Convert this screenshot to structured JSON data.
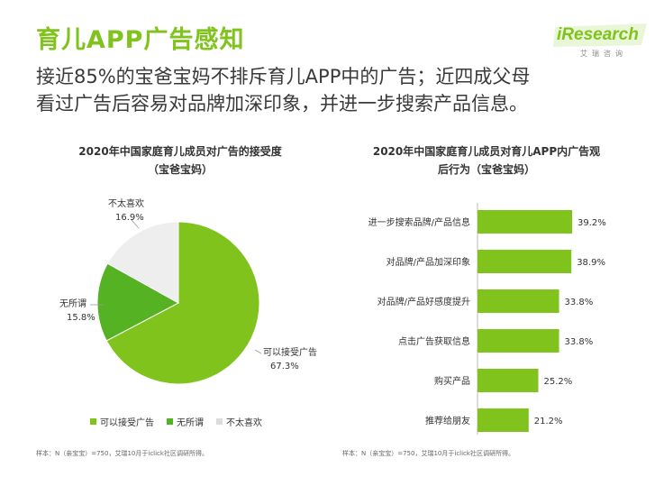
{
  "header": {
    "title": "育儿APP广告感知",
    "subtitle_line1": "接近85%的宝爸宝妈不排斥育儿APP中的广告；近四成父母",
    "subtitle_line2": "看过广告后容易对品牌加深印象，并进一步搜索产品信息。",
    "logo_text": "iResearch",
    "logo_sub": "艾瑞咨询"
  },
  "colors": {
    "accent": "#7fc31c",
    "mid": "#55b323",
    "light": "#eeeeee"
  },
  "pie": {
    "title_line1": "2020年中国家庭育儿成员对广告的接受度",
    "title_line2": "（宝爸宝妈）",
    "note": "样本：N（亲宝宝）=750，艾瑞10月于iclick社区调研所得。"
  },
  "bar": {
    "title_line1": "2020年中国家庭育儿成员对育儿APP内广告观",
    "title_line2": "后行为（宝爸宝妈）",
    "note": "样本：N（亲宝宝）=750，艾瑞10月于iclick社区调研所得。"
  },
  "chart_data": [
    {
      "type": "pie",
      "title": "2020年中国家庭育儿成员对广告的接受度（宝爸宝妈）",
      "slices": [
        {
          "label": "可以接受广告",
          "value": 67.3,
          "display": "67.3%",
          "color": "#7fc31c"
        },
        {
          "label": "无所谓",
          "value": 15.8,
          "display": "15.8%",
          "color": "#55b323"
        },
        {
          "label": "不太喜欢",
          "value": 16.9,
          "display": "16.9%",
          "color": "#eeeeee"
        }
      ],
      "legend": [
        "可以接受广告",
        "无所谓",
        "不太喜欢"
      ],
      "legend_position": "bottom"
    },
    {
      "type": "bar",
      "orientation": "horizontal",
      "title": "2020年中国家庭育儿成员对育儿APP内广告观后行为（宝爸宝妈）",
      "categories": [
        "进一步搜索品牌/产品信息",
        "对品牌/产品加深印象",
        "对品牌/产品好感度提升",
        "点击广告获取信息",
        "购买产品",
        "推荐给朋友"
      ],
      "values": [
        39.2,
        38.9,
        33.8,
        33.8,
        25.2,
        21.2
      ],
      "labels": [
        "39.2%",
        "38.9%",
        "33.8%",
        "33.8%",
        "25.2%",
        "21.2%"
      ],
      "color": "#7fc31c",
      "xlim": [
        0,
        45
      ]
    }
  ]
}
